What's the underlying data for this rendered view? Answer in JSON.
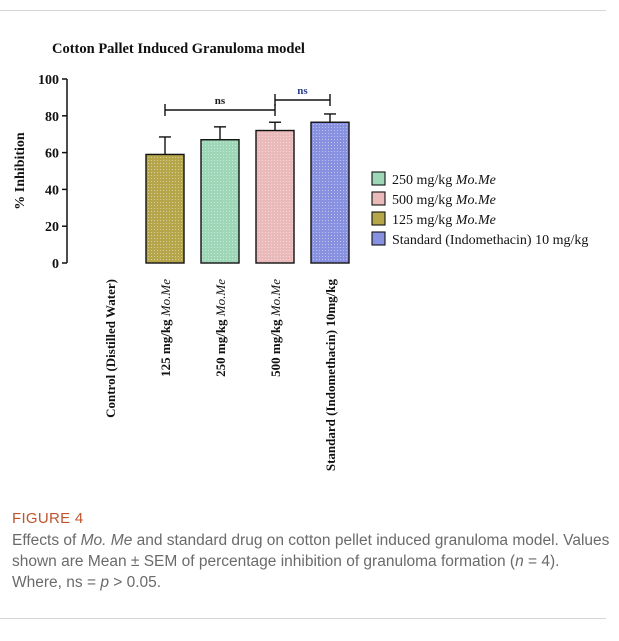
{
  "figure": {
    "label": "FIGURE 4",
    "caption_parts": [
      {
        "text": "Effects of ",
        "italic": false
      },
      {
        "text": "Mo. Me",
        "italic": true
      },
      {
        "text": " and standard drug on cotton pellet induced granuloma model. Values shown are Mean ± SEM of percentage inhibition of granuloma formation (",
        "italic": false
      },
      {
        "text": "n",
        "italic": true
      },
      {
        "text": " = 4). Where, ns = ",
        "italic": false
      },
      {
        "text": "p",
        "italic": true
      },
      {
        "text": " > 0.05.",
        "italic": false
      }
    ]
  },
  "chart_data": {
    "type": "bar",
    "title": "Cotton Pallet Induced Granuloma model",
    "ylabel": "% Inhibition",
    "xlabel": "",
    "ylim": [
      0,
      100
    ],
    "yticks": [
      0,
      20,
      40,
      60,
      80,
      100
    ],
    "grid": false,
    "legend_position": "right",
    "categories": [
      {
        "text": "Control (Distilled Water)",
        "italic_suffix": ""
      },
      {
        "text": "125 mg/kg ",
        "italic_suffix": "Mo.Me"
      },
      {
        "text": "250 mg/kg ",
        "italic_suffix": "Mo.Me"
      },
      {
        "text": "500 mg/kg ",
        "italic_suffix": "Mo.Me"
      },
      {
        "text": "Standard (Indomethacin) 10mg/kg",
        "italic_suffix": ""
      }
    ],
    "values": [
      0,
      59,
      67,
      72,
      76.5
    ],
    "errors": [
      0,
      9.5,
      7,
      4.5,
      4.5
    ],
    "bar_colors": [
      "#ffffff",
      "#b5a64a",
      "#9ed6b8",
      "#eab9b9",
      "#8891e0"
    ],
    "legend": [
      {
        "text": "250 mg/kg ",
        "italic_suffix": "Mo.Me",
        "color": "#9ed6b8"
      },
      {
        "text": "500 mg/kg ",
        "italic_suffix": "Mo.Me",
        "color": "#eab9b9"
      },
      {
        "text": "125 mg/kg ",
        "italic_suffix": "Mo.Me",
        "color": "#b5a64a"
      },
      {
        "text": "Standard (Indomethacin) 10 mg/kg",
        "italic_suffix": "",
        "color": "#8891e0"
      }
    ],
    "annotations": [
      {
        "text": "ns",
        "from": 1,
        "to": 3,
        "color": "#1a1a1a"
      },
      {
        "text": "ns",
        "from": 3,
        "to": 4,
        "color": "#2c3e8f"
      }
    ]
  }
}
